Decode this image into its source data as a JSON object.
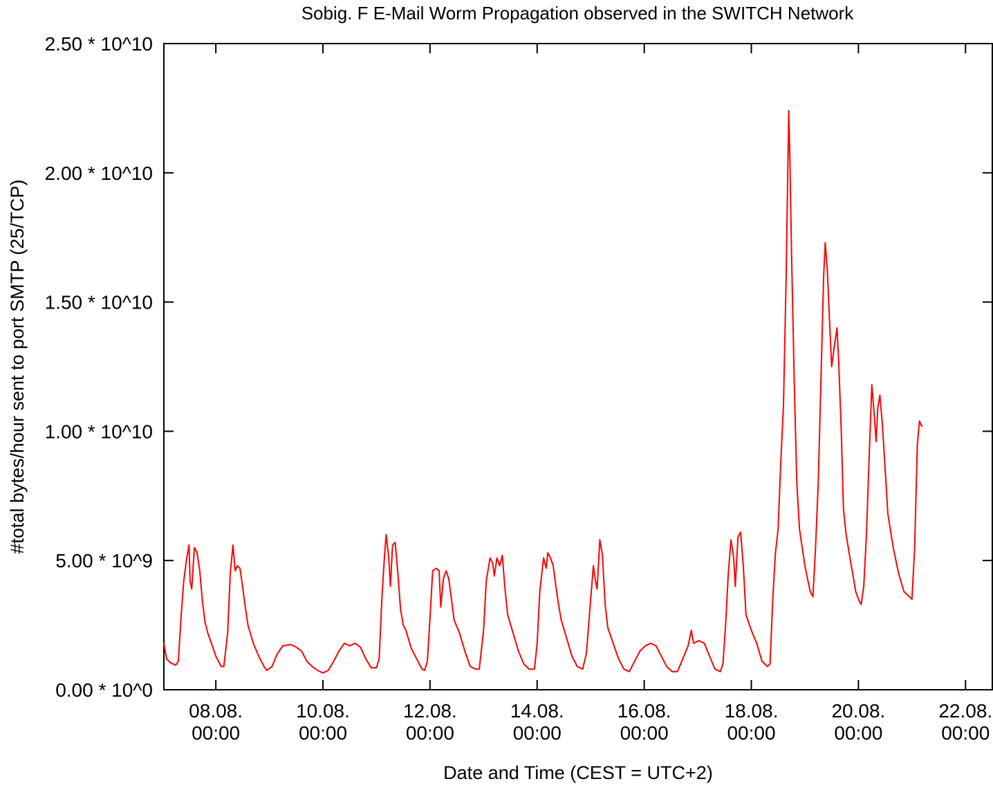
{
  "chart_data": {
    "type": "line",
    "title": "Sobig. F E-Mail Worm Propagation observed in the SWITCH Network",
    "xlabel": "Date and Time (CEST = UTC+2)",
    "ylabel": "#total bytes/hour sent to port SMTP (25/TCP)",
    "x_unit": "days (August 2003, CEST)",
    "xlim": [
      7.03,
      22.5
    ],
    "ylim": [
      0,
      25000000000
    ],
    "grid": false,
    "legend": "none",
    "line_color": "#ff0000",
    "y_ticks": [
      {
        "value": 0,
        "label": "0.00 * 10^0"
      },
      {
        "value": 5000000000,
        "label": "5.00 * 10^9"
      },
      {
        "value": 10000000000,
        "label": "1.00 * 10^10"
      },
      {
        "value": 15000000000,
        "label": "1.50 * 10^10"
      },
      {
        "value": 20000000000,
        "label": "2.00 * 10^10"
      },
      {
        "value": 25000000000,
        "label": "2.50 * 10^10"
      }
    ],
    "x_ticks": [
      {
        "value": 8,
        "date": "08.08.",
        "time": "00:00"
      },
      {
        "value": 10,
        "date": "10.08.",
        "time": "00:00"
      },
      {
        "value": 12,
        "date": "12.08.",
        "time": "00:00"
      },
      {
        "value": 14,
        "date": "14.08.",
        "time": "00:00"
      },
      {
        "value": 16,
        "date": "16.08.",
        "time": "00:00"
      },
      {
        "value": 18,
        "date": "18.08.",
        "time": "00:00"
      },
      {
        "value": 20,
        "date": "20.08.",
        "time": "00:00"
      },
      {
        "value": 22,
        "date": "22.08.",
        "time": "00:00"
      }
    ],
    "series": [
      {
        "values_unit": "bytes per hour",
        "points": [
          [
            7.03,
            1800000000
          ],
          [
            7.08,
            1200000000
          ],
          [
            7.15,
            1050000000
          ],
          [
            7.25,
            950000000
          ],
          [
            7.3,
            1100000000
          ],
          [
            7.35,
            2800000000
          ],
          [
            7.4,
            4200000000
          ],
          [
            7.45,
            5000000000
          ],
          [
            7.5,
            5600000000
          ],
          [
            7.52,
            4200000000
          ],
          [
            7.55,
            3900000000
          ],
          [
            7.6,
            5500000000
          ],
          [
            7.65,
            5300000000
          ],
          [
            7.7,
            4600000000
          ],
          [
            7.75,
            3400000000
          ],
          [
            7.8,
            2600000000
          ],
          [
            7.85,
            2200000000
          ],
          [
            7.9,
            1900000000
          ],
          [
            8.0,
            1300000000
          ],
          [
            8.1,
            900000000
          ],
          [
            8.15,
            900000000
          ],
          [
            8.22,
            2200000000
          ],
          [
            8.27,
            4500000000
          ],
          [
            8.32,
            5600000000
          ],
          [
            8.36,
            4600000000
          ],
          [
            8.4,
            4800000000
          ],
          [
            8.45,
            4700000000
          ],
          [
            8.5,
            4000000000
          ],
          [
            8.55,
            3200000000
          ],
          [
            8.6,
            2500000000
          ],
          [
            8.7,
            1800000000
          ],
          [
            8.8,
            1300000000
          ],
          [
            8.9,
            900000000
          ],
          [
            8.95,
            750000000
          ],
          [
            9.05,
            900000000
          ],
          [
            9.15,
            1400000000
          ],
          [
            9.25,
            1700000000
          ],
          [
            9.4,
            1750000000
          ],
          [
            9.5,
            1650000000
          ],
          [
            9.6,
            1500000000
          ],
          [
            9.7,
            1100000000
          ],
          [
            9.8,
            900000000
          ],
          [
            9.9,
            750000000
          ],
          [
            10.0,
            650000000
          ],
          [
            10.1,
            750000000
          ],
          [
            10.2,
            1100000000
          ],
          [
            10.3,
            1500000000
          ],
          [
            10.4,
            1800000000
          ],
          [
            10.5,
            1700000000
          ],
          [
            10.6,
            1800000000
          ],
          [
            10.7,
            1650000000
          ],
          [
            10.8,
            1200000000
          ],
          [
            10.9,
            850000000
          ],
          [
            11.0,
            850000000
          ],
          [
            11.05,
            1200000000
          ],
          [
            11.1,
            3500000000
          ],
          [
            11.15,
            5200000000
          ],
          [
            11.18,
            6000000000
          ],
          [
            11.23,
            5100000000
          ],
          [
            11.26,
            4000000000
          ],
          [
            11.3,
            5600000000
          ],
          [
            11.35,
            5700000000
          ],
          [
            11.4,
            4500000000
          ],
          [
            11.45,
            3100000000
          ],
          [
            11.5,
            2500000000
          ],
          [
            11.55,
            2300000000
          ],
          [
            11.65,
            1600000000
          ],
          [
            11.75,
            1200000000
          ],
          [
            11.85,
            800000000
          ],
          [
            11.9,
            750000000
          ],
          [
            11.95,
            1100000000
          ],
          [
            12.0,
            2800000000
          ],
          [
            12.05,
            4600000000
          ],
          [
            12.12,
            4700000000
          ],
          [
            12.17,
            4600000000
          ],
          [
            12.2,
            3200000000
          ],
          [
            12.25,
            4300000000
          ],
          [
            12.3,
            4600000000
          ],
          [
            12.35,
            4300000000
          ],
          [
            12.4,
            3500000000
          ],
          [
            12.45,
            2700000000
          ],
          [
            12.55,
            2200000000
          ],
          [
            12.65,
            1500000000
          ],
          [
            12.75,
            900000000
          ],
          [
            12.85,
            800000000
          ],
          [
            12.92,
            800000000
          ],
          [
            13.0,
            2300000000
          ],
          [
            13.05,
            4200000000
          ],
          [
            13.12,
            5100000000
          ],
          [
            13.17,
            4900000000
          ],
          [
            13.2,
            4400000000
          ],
          [
            13.25,
            5100000000
          ],
          [
            13.3,
            4800000000
          ],
          [
            13.35,
            5200000000
          ],
          [
            13.4,
            3900000000
          ],
          [
            13.45,
            2900000000
          ],
          [
            13.55,
            2200000000
          ],
          [
            13.65,
            1500000000
          ],
          [
            13.75,
            1000000000
          ],
          [
            13.85,
            800000000
          ],
          [
            13.95,
            800000000
          ],
          [
            14.0,
            1800000000
          ],
          [
            14.05,
            3800000000
          ],
          [
            14.12,
            5100000000
          ],
          [
            14.17,
            4700000000
          ],
          [
            14.2,
            5300000000
          ],
          [
            14.25,
            5100000000
          ],
          [
            14.3,
            4800000000
          ],
          [
            14.35,
            4000000000
          ],
          [
            14.4,
            3300000000
          ],
          [
            14.45,
            2700000000
          ],
          [
            14.55,
            2000000000
          ],
          [
            14.65,
            1300000000
          ],
          [
            14.75,
            900000000
          ],
          [
            14.85,
            800000000
          ],
          [
            14.92,
            1400000000
          ],
          [
            15.0,
            3500000000
          ],
          [
            15.05,
            4800000000
          ],
          [
            15.09,
            4200000000
          ],
          [
            15.12,
            3900000000
          ],
          [
            15.17,
            5800000000
          ],
          [
            15.22,
            5200000000
          ],
          [
            15.27,
            3300000000
          ],
          [
            15.32,
            2400000000
          ],
          [
            15.42,
            1800000000
          ],
          [
            15.52,
            1200000000
          ],
          [
            15.62,
            800000000
          ],
          [
            15.72,
            700000000
          ],
          [
            15.82,
            1100000000
          ],
          [
            15.92,
            1500000000
          ],
          [
            16.02,
            1700000000
          ],
          [
            16.12,
            1800000000
          ],
          [
            16.22,
            1700000000
          ],
          [
            16.32,
            1300000000
          ],
          [
            16.42,
            900000000
          ],
          [
            16.52,
            700000000
          ],
          [
            16.62,
            700000000
          ],
          [
            16.72,
            1200000000
          ],
          [
            16.82,
            1700000000
          ],
          [
            16.88,
            2300000000
          ],
          [
            16.92,
            1800000000
          ],
          [
            17.02,
            1900000000
          ],
          [
            17.12,
            1800000000
          ],
          [
            17.22,
            1300000000
          ],
          [
            17.32,
            800000000
          ],
          [
            17.42,
            700000000
          ],
          [
            17.47,
            1000000000
          ],
          [
            17.52,
            2500000000
          ],
          [
            17.57,
            4500000000
          ],
          [
            17.62,
            5800000000
          ],
          [
            17.67,
            5100000000
          ],
          [
            17.7,
            4000000000
          ],
          [
            17.75,
            5900000000
          ],
          [
            17.8,
            6100000000
          ],
          [
            17.85,
            4800000000
          ],
          [
            17.9,
            2900000000
          ],
          [
            18.0,
            2300000000
          ],
          [
            18.1,
            1800000000
          ],
          [
            18.2,
            1100000000
          ],
          [
            18.3,
            900000000
          ],
          [
            18.35,
            1000000000
          ],
          [
            18.4,
            3500000000
          ],
          [
            18.45,
            5300000000
          ],
          [
            18.5,
            6200000000
          ],
          [
            18.55,
            8800000000
          ],
          [
            18.6,
            11000000000
          ],
          [
            18.65,
            16000000000
          ],
          [
            18.68,
            20000000000
          ],
          [
            18.7,
            22400000000
          ],
          [
            18.72,
            20500000000
          ],
          [
            18.75,
            17000000000
          ],
          [
            18.8,
            12000000000
          ],
          [
            18.85,
            8000000000
          ],
          [
            18.9,
            6200000000
          ],
          [
            18.95,
            5500000000
          ],
          [
            19.0,
            4800000000
          ],
          [
            19.05,
            4300000000
          ],
          [
            19.1,
            3800000000
          ],
          [
            19.15,
            3600000000
          ],
          [
            19.2,
            5500000000
          ],
          [
            19.25,
            8000000000
          ],
          [
            19.3,
            12000000000
          ],
          [
            19.35,
            16000000000
          ],
          [
            19.38,
            17300000000
          ],
          [
            19.42,
            16200000000
          ],
          [
            19.47,
            13800000000
          ],
          [
            19.5,
            12500000000
          ],
          [
            19.55,
            13300000000
          ],
          [
            19.6,
            14000000000
          ],
          [
            19.63,
            12800000000
          ],
          [
            19.68,
            10000000000
          ],
          [
            19.72,
            7000000000
          ],
          [
            19.77,
            6000000000
          ],
          [
            19.85,
            5000000000
          ],
          [
            19.95,
            3800000000
          ],
          [
            20.0,
            3500000000
          ],
          [
            20.05,
            3300000000
          ],
          [
            20.1,
            4000000000
          ],
          [
            20.15,
            6000000000
          ],
          [
            20.2,
            9000000000
          ],
          [
            20.25,
            11800000000
          ],
          [
            20.3,
            10500000000
          ],
          [
            20.33,
            9600000000
          ],
          [
            20.36,
            10900000000
          ],
          [
            20.4,
            11400000000
          ],
          [
            20.45,
            10200000000
          ],
          [
            20.5,
            8500000000
          ],
          [
            20.55,
            6800000000
          ],
          [
            20.65,
            5500000000
          ],
          [
            20.75,
            4500000000
          ],
          [
            20.85,
            3800000000
          ],
          [
            20.95,
            3600000000
          ],
          [
            21.0,
            3500000000
          ],
          [
            21.05,
            5500000000
          ],
          [
            21.1,
            9500000000
          ],
          [
            21.14,
            10400000000
          ],
          [
            21.18,
            10200000000
          ],
          [
            21.2,
            10200000000
          ]
        ]
      }
    ]
  }
}
